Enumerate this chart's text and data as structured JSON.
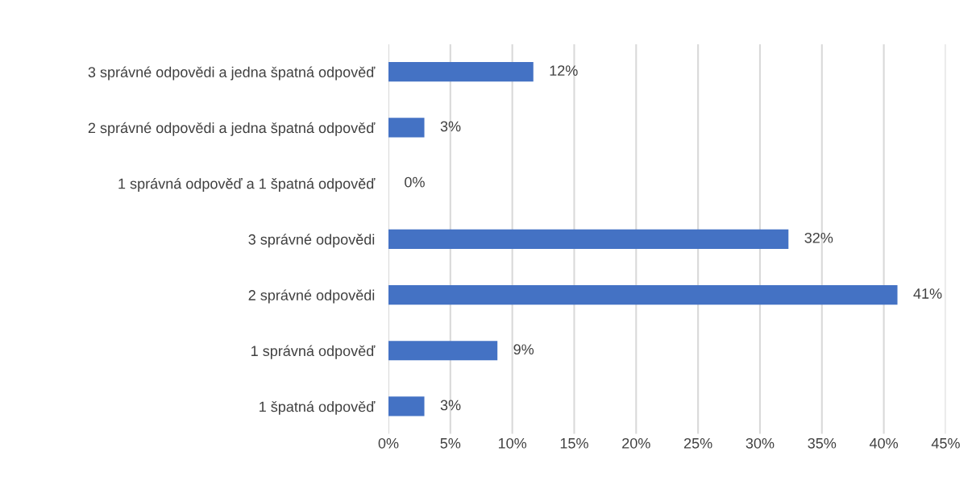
{
  "chart_data": {
    "type": "bar",
    "orientation": "horizontal",
    "categories": [
      "3 správné odpovědi a jedna špatná odpověď",
      "2 správné odpovědi a jedna špatná odpověď",
      "1 správná odpověď a 1 špatná odpověď",
      "3 správné odpovědi",
      "2 správné odpovědi",
      "1 správná odpověď",
      "1 špatná odpověď"
    ],
    "values": [
      11.7,
      2.9,
      0,
      32.3,
      41.1,
      8.8,
      2.9
    ],
    "value_labels": [
      "12%",
      "3%",
      "0%",
      "32%",
      "41%",
      "9%",
      "3%"
    ],
    "color": "#4472c4",
    "xlim": [
      0,
      45
    ],
    "xticks": [
      {
        "value": 0,
        "label": "0%"
      },
      {
        "value": 5,
        "label": "5%"
      },
      {
        "value": 10,
        "label": "10%"
      },
      {
        "value": 15,
        "label": "15%"
      },
      {
        "value": 20,
        "label": "20%"
      },
      {
        "value": 25,
        "label": "25%"
      },
      {
        "value": 30,
        "label": "30%"
      },
      {
        "value": 35,
        "label": "35%"
      },
      {
        "value": 40,
        "label": "40%"
      },
      {
        "value": 45,
        "label": "45%"
      }
    ],
    "grid": "x"
  }
}
